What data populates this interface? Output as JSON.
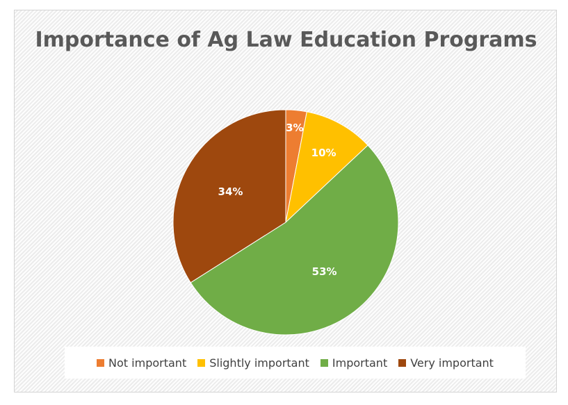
{
  "chart_data": {
    "type": "pie",
    "title": "Importance of Ag Law Education Programs",
    "categories": [
      "Not important",
      "Slightly important",
      "Important",
      "Very important"
    ],
    "values": [
      3,
      10,
      53,
      34
    ],
    "labels": [
      "3%",
      "10%",
      "53%",
      "34%"
    ],
    "colors": [
      "#ED7D31",
      "#FFC000",
      "#70AD47",
      "#9E480E"
    ],
    "legend_position": "bottom"
  }
}
